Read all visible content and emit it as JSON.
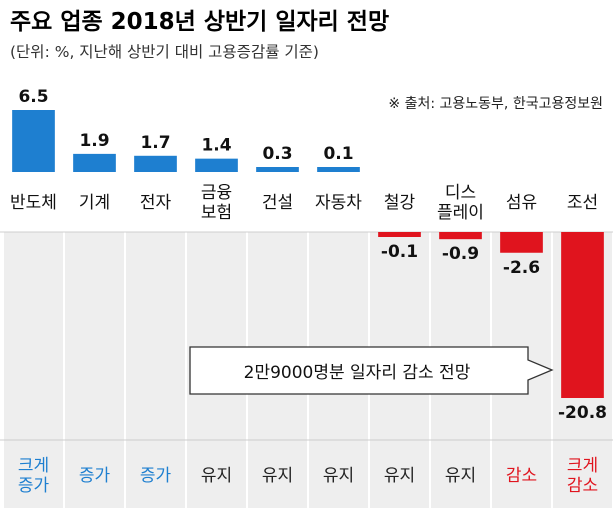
{
  "title": "주요 업종 2018년 상반기 일자리 전망",
  "subtitle": "(단위: %, 지난해 상반기 대비 고용증감률 기준)",
  "source": "※ 출처: 고용노동부, 한국고용정보원",
  "callout": "2만9000명분 일자리 감소 전망",
  "colors": {
    "positive": "#1e7fd0",
    "negative": "#e0141e",
    "increase_text": "#1e7fd0",
    "decrease_text": "#e0141e",
    "neutral_text": "#222222",
    "row_band": "#eeeeee"
  },
  "chart_data": {
    "type": "bar",
    "categories": [
      "반도체",
      "기계",
      "전자",
      "금융보험",
      "건설",
      "자동차",
      "철강",
      "디스플레이",
      "섬유",
      "조선"
    ],
    "category_lines": [
      [
        "반도체"
      ],
      [
        "기계"
      ],
      [
        "전자"
      ],
      [
        "금융",
        "보험"
      ],
      [
        "건설"
      ],
      [
        "자동차"
      ],
      [
        "철강"
      ],
      [
        "디스",
        "플레이"
      ],
      [
        "섬유"
      ],
      [
        "조선"
      ]
    ],
    "values": [
      6.5,
      1.9,
      1.7,
      1.4,
      0.3,
      0.1,
      -0.1,
      -0.9,
      -2.6,
      -20.8
    ],
    "value_labels": [
      "6.5",
      "1.9",
      "1.7",
      "1.4",
      "0.3",
      "0.1",
      "-0.1",
      "-0.9",
      "-2.6",
      "-20.8"
    ],
    "outlook": [
      [
        "크게",
        "증가"
      ],
      [
        "증가"
      ],
      [
        "증가"
      ],
      [
        "유지"
      ],
      [
        "유지"
      ],
      [
        "유지"
      ],
      [
        "유지"
      ],
      [
        "유지"
      ],
      [
        "감소"
      ],
      [
        "크게",
        "감소"
      ]
    ],
    "outlook_type": [
      "increase",
      "increase",
      "increase",
      "neutral",
      "neutral",
      "neutral",
      "neutral",
      "neutral",
      "decrease",
      "decrease"
    ],
    "title": "주요 업종 2018년 상반기 일자리 전망",
    "xlabel": "",
    "ylabel": "",
    "ylim": [
      -20.8,
      6.5
    ],
    "grid": false,
    "legend": "none"
  }
}
